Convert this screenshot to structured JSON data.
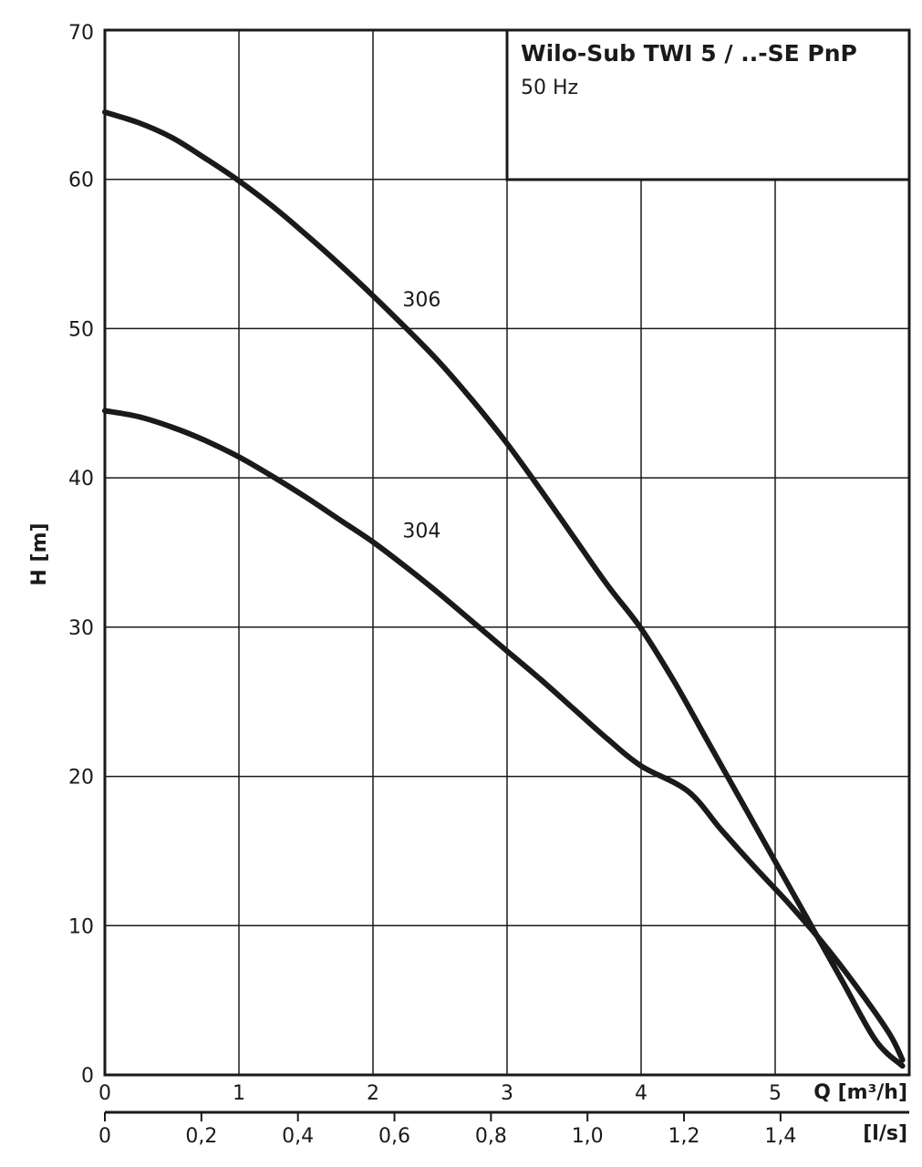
{
  "chart_data": {
    "type": "line",
    "title": "Wilo-Sub TWI 5 / ..-SE PnP",
    "subtitle": "50 Hz",
    "xlabel": "Q [m³/h]",
    "x2label": "[l/s]",
    "ylabel": "H [m]",
    "xlim": [
      0,
      6
    ],
    "ylim": [
      0,
      70
    ],
    "x_ticks": [
      "0",
      "1",
      "2",
      "3",
      "4",
      "5"
    ],
    "x2_ticks": [
      "0",
      "0,2",
      "0,4",
      "0,6",
      "0,8",
      "1,0",
      "1,2",
      "1,4"
    ],
    "y_ticks": [
      "0",
      "10",
      "20",
      "30",
      "40",
      "50",
      "60",
      "70"
    ],
    "grid": true,
    "series": [
      {
        "name": "306",
        "label_at": [
          2.22,
          51.5
        ],
        "x": [
          0,
          0.25,
          0.5,
          0.75,
          1.0,
          1.25,
          1.5,
          1.75,
          2.0,
          2.25,
          2.5,
          2.75,
          3.0,
          3.25,
          3.5,
          3.75,
          4.0,
          4.25,
          4.5,
          4.75,
          5.0,
          5.25,
          5.5,
          5.75,
          5.95
        ],
        "y": [
          64.5,
          63.8,
          62.8,
          61.4,
          59.9,
          58.2,
          56.3,
          54.3,
          52.2,
          50.0,
          47.7,
          45.1,
          42.3,
          39.2,
          36.0,
          32.8,
          29.9,
          26.3,
          22.3,
          18.3,
          14.3,
          10.3,
          6.3,
          2.3,
          0.6
        ]
      },
      {
        "name": "304",
        "label_at": [
          2.22,
          36.0
        ],
        "x": [
          0,
          0.25,
          0.5,
          0.75,
          1.0,
          1.25,
          1.5,
          1.75,
          2.0,
          2.25,
          2.5,
          2.75,
          3.0,
          3.25,
          3.5,
          3.75,
          4.0,
          4.35,
          4.6,
          4.85,
          5.1,
          5.35,
          5.6,
          5.85,
          5.95
        ],
        "y": [
          44.5,
          44.1,
          43.4,
          42.5,
          41.4,
          40.1,
          38.7,
          37.2,
          35.7,
          34.0,
          32.2,
          30.3,
          28.4,
          26.5,
          24.5,
          22.5,
          20.7,
          19.0,
          16.4,
          13.9,
          11.5,
          8.9,
          6.0,
          2.8,
          1.0
        ]
      }
    ]
  }
}
